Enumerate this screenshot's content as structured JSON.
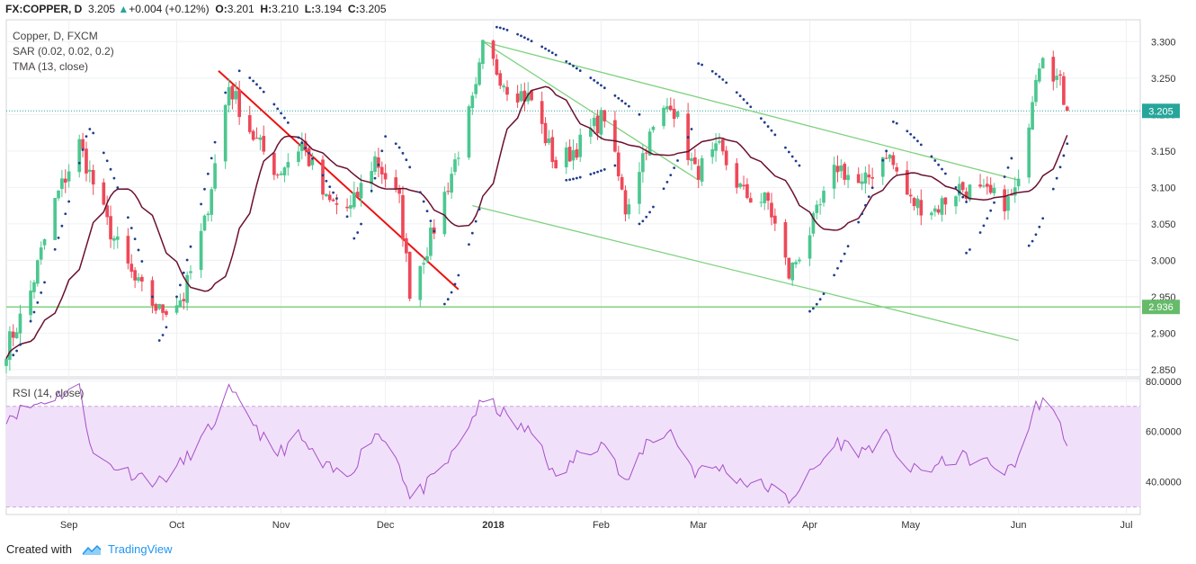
{
  "header": {
    "symbol": "FX:COPPER, D",
    "last": "3.205",
    "change": "+0.004 (+0.12%)",
    "open_label": "O:",
    "open": "3.201",
    "high_label": "H:",
    "high": "3.210",
    "low_label": "L:",
    "low": "3.194",
    "close_label": "C:",
    "close": "3.205"
  },
  "legend": {
    "line1": "Copper, D, FXCM",
    "line2": "SAR (0.02, 0.02, 0.2)",
    "line3": "TMA (13, close)",
    "rsi": "RSI (14, close)"
  },
  "footer": {
    "created_with": "Created with",
    "brand": "TradingView"
  },
  "colors": {
    "up": "#4cc790",
    "down": "#ee4959",
    "tma": "#6b1030",
    "sar": "#1f3d8c",
    "trendline_red": "#ee1111",
    "trendline_green": "#7fd17f",
    "rsi_line": "#a550c8",
    "rsi_band": "#f1e0fa",
    "price_label": "#26a69a"
  },
  "chart_data": [
    {
      "type": "candlestick",
      "title": "Copper, D, FXCM",
      "x_start": "2017-08-14",
      "x_end": "2018-07-06",
      "x_ticks": [
        {
          "label": "Sep",
          "date": "2017-09-01"
        },
        {
          "label": "Oct",
          "date": "2017-10-02"
        },
        {
          "label": "Nov",
          "date": "2017-11-01"
        },
        {
          "label": "Dec",
          "date": "2017-12-01"
        },
        {
          "label": "2018",
          "date": "2018-01-01",
          "bold": true
        },
        {
          "label": "Feb",
          "date": "2018-02-01"
        },
        {
          "label": "Mar",
          "date": "2018-03-01"
        },
        {
          "label": "Apr",
          "date": "2018-04-02"
        },
        {
          "label": "May",
          "date": "2018-05-01"
        },
        {
          "label": "Jun",
          "date": "2018-06-01"
        },
        {
          "label": "Jul",
          "date": "2018-07-02"
        }
      ],
      "ylim": [
        2.84,
        3.33
      ],
      "y_ticks": [
        "2.850",
        "2.900",
        "2.950",
        "3.000",
        "3.050",
        "3.100",
        "3.150",
        "3.200",
        "3.250",
        "3.300"
      ],
      "last_price_label": "3.205",
      "horizontal_line": {
        "label": "2.936",
        "value": 2.936
      },
      "anchors": [
        [
          "2017-08-14",
          2.88
        ],
        [
          "2017-08-20",
          2.94
        ],
        [
          "2017-08-28",
          3.08
        ],
        [
          "2017-09-04",
          3.16
        ],
        [
          "2017-09-12",
          3.05
        ],
        [
          "2017-09-20",
          2.97
        ],
        [
          "2017-09-27",
          2.93
        ],
        [
          "2017-10-04",
          2.95
        ],
        [
          "2017-10-10",
          3.05
        ],
        [
          "2017-10-17",
          3.24
        ],
        [
          "2017-10-24",
          3.17
        ],
        [
          "2017-10-31",
          3.12
        ],
        [
          "2017-11-07",
          3.16
        ],
        [
          "2017-11-14",
          3.08
        ],
        [
          "2017-11-21",
          3.07
        ],
        [
          "2017-11-28",
          3.14
        ],
        [
          "2017-12-05",
          3.08
        ],
        [
          "2017-12-08",
          2.96
        ],
        [
          "2017-12-14",
          3.03
        ],
        [
          "2017-12-20",
          3.12
        ],
        [
          "2017-12-27",
          3.23
        ],
        [
          "2017-12-29",
          3.29
        ],
        [
          "2018-01-05",
          3.24
        ],
        [
          "2018-01-12",
          3.22
        ],
        [
          "2018-01-19",
          3.13
        ],
        [
          "2018-01-26",
          3.16
        ],
        [
          "2018-02-02",
          3.2
        ],
        [
          "2018-02-08",
          3.07
        ],
        [
          "2018-02-14",
          3.16
        ],
        [
          "2018-02-21",
          3.22
        ],
        [
          "2018-02-28",
          3.12
        ],
        [
          "2018-03-07",
          3.15
        ],
        [
          "2018-03-14",
          3.09
        ],
        [
          "2018-03-21",
          3.08
        ],
        [
          "2018-03-27",
          2.98
        ],
        [
          "2018-04-03",
          3.05
        ],
        [
          "2018-04-10",
          3.13
        ],
        [
          "2018-04-17",
          3.1
        ],
        [
          "2018-04-24",
          3.15
        ],
        [
          "2018-05-01",
          3.08
        ],
        [
          "2018-05-08",
          3.07
        ],
        [
          "2018-05-15",
          3.1
        ],
        [
          "2018-05-22",
          3.09
        ],
        [
          "2018-05-29",
          3.08
        ],
        [
          "2018-06-01",
          3.1
        ],
        [
          "2018-06-06",
          3.26
        ],
        [
          "2018-06-08",
          3.29
        ],
        [
          "2018-06-13",
          3.24
        ],
        [
          "2018-06-15",
          3.205
        ]
      ],
      "sar_segments": [
        {
          "from": "2017-08-16",
          "to": "2017-09-06",
          "start": 2.87,
          "end": 3.17
        },
        {
          "from": "2017-09-07",
          "to": "2017-09-25",
          "start": 3.18,
          "end": 2.95
        },
        {
          "from": "2017-09-27",
          "to": "2017-10-16",
          "start": 2.89,
          "end": 3.23
        },
        {
          "from": "2017-10-20",
          "to": "2017-11-20",
          "start": 3.26,
          "end": 3.06
        },
        {
          "from": "2017-11-22",
          "to": "2017-12-01",
          "start": 3.03,
          "end": 3.17
        },
        {
          "from": "2017-12-04",
          "to": "2017-12-15",
          "start": 3.16,
          "end": 3.04
        },
        {
          "from": "2017-12-18",
          "to": "2017-12-28",
          "start": 2.94,
          "end": 3.07
        },
        {
          "from": "2018-01-02",
          "to": "2018-02-12",
          "start": 3.32,
          "end": 3.2
        },
        {
          "from": "2018-01-22",
          "to": "2018-02-05",
          "start": 3.11,
          "end": 3.13
        },
        {
          "from": "2018-02-12",
          "to": "2018-02-27",
          "start": 3.05,
          "end": 3.18
        },
        {
          "from": "2018-03-01",
          "to": "2018-03-30",
          "start": 3.27,
          "end": 3.13
        },
        {
          "from": "2018-04-02",
          "to": "2018-04-24",
          "start": 2.93,
          "end": 3.15
        },
        {
          "from": "2018-04-26",
          "to": "2018-05-17",
          "start": 3.19,
          "end": 3.08
        },
        {
          "from": "2018-05-17",
          "to": "2018-05-30",
          "start": 3.01,
          "end": 3.14
        },
        {
          "from": "2018-06-04",
          "to": "2018-06-15",
          "start": 3.02,
          "end": 3.16
        }
      ],
      "trendlines": [
        {
          "color": "red",
          "from": [
            "2017-10-14",
            3.26
          ],
          "to": [
            "2017-12-22",
            2.96
          ]
        },
        {
          "color": "green",
          "from": [
            "2017-12-29",
            3.3
          ],
          "to": [
            "2018-06-01",
            3.11
          ]
        },
        {
          "color": "green",
          "from": [
            "2017-12-29",
            3.3
          ],
          "to": [
            "2018-03-01",
            3.11
          ]
        },
        {
          "color": "green",
          "from": [
            "2017-12-26",
            3.075
          ],
          "to": [
            "2018-06-01",
            2.89
          ]
        }
      ]
    },
    {
      "type": "line",
      "title": "RSI (14, close)",
      "ylim": [
        27,
        81
      ],
      "y_ticks": [
        "40.0000",
        "60.0000",
        "80.0000"
      ],
      "band": [
        30,
        70
      ],
      "anchors": [
        [
          "2017-08-14",
          66
        ],
        [
          "2017-08-28",
          74
        ],
        [
          "2017-09-04",
          78
        ],
        [
          "2017-09-08",
          50
        ],
        [
          "2017-09-18",
          44
        ],
        [
          "2017-09-27",
          40
        ],
        [
          "2017-10-04",
          48
        ],
        [
          "2017-10-12",
          62
        ],
        [
          "2017-10-17",
          76
        ],
        [
          "2017-10-24",
          64
        ],
        [
          "2017-10-30",
          50
        ],
        [
          "2017-11-06",
          58
        ],
        [
          "2017-11-13",
          46
        ],
        [
          "2017-11-20",
          42
        ],
        [
          "2017-11-28",
          60
        ],
        [
          "2017-12-04",
          52
        ],
        [
          "2017-12-08",
          33
        ],
        [
          "2017-12-14",
          40
        ],
        [
          "2017-12-20",
          50
        ],
        [
          "2017-12-27",
          68
        ],
        [
          "2017-12-30",
          73
        ],
        [
          "2018-01-08",
          62
        ],
        [
          "2018-01-14",
          58
        ],
        [
          "2018-01-19",
          40
        ],
        [
          "2018-01-26",
          52
        ],
        [
          "2018-02-02",
          56
        ],
        [
          "2018-02-08",
          38
        ],
        [
          "2018-02-14",
          56
        ],
        [
          "2018-02-21",
          60
        ],
        [
          "2018-02-28",
          44
        ],
        [
          "2018-03-07",
          46
        ],
        [
          "2018-03-14",
          40
        ],
        [
          "2018-03-21",
          38
        ],
        [
          "2018-03-27",
          33
        ],
        [
          "2018-04-03",
          44
        ],
        [
          "2018-04-10",
          56
        ],
        [
          "2018-04-17",
          52
        ],
        [
          "2018-04-24",
          58
        ],
        [
          "2018-05-01",
          44
        ],
        [
          "2018-05-08",
          46
        ],
        [
          "2018-05-15",
          50
        ],
        [
          "2018-05-22",
          48
        ],
        [
          "2018-05-29",
          44
        ],
        [
          "2018-06-01",
          50
        ],
        [
          "2018-06-06",
          70
        ],
        [
          "2018-06-08",
          73
        ],
        [
          "2018-06-13",
          62
        ],
        [
          "2018-06-15",
          56
        ]
      ]
    }
  ]
}
